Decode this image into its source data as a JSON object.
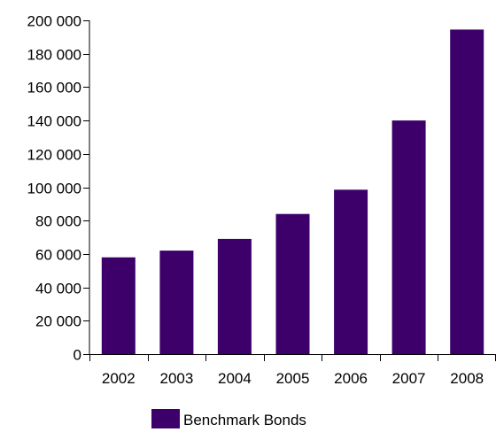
{
  "chart_data": {
    "type": "bar",
    "title": "",
    "xlabel": "",
    "ylabel": "",
    "categories": [
      "2002",
      "2003",
      "2004",
      "2005",
      "2006",
      "2007",
      "2008"
    ],
    "series": [
      {
        "name": "Benchmark Bonds",
        "color": "#3d006b",
        "values": [
          58000,
          62000,
          69000,
          84000,
          98500,
          140000,
          194500
        ]
      }
    ],
    "ylim": [
      0,
      200000
    ],
    "yticks": [
      0,
      20000,
      40000,
      60000,
      80000,
      100000,
      120000,
      140000,
      160000,
      180000,
      200000
    ],
    "ytick_labels": [
      "0",
      "20 000",
      "40 000",
      "60 000",
      "80 000",
      "100 000",
      "120 000",
      "140 000",
      "160 000",
      "180 000",
      "200 000"
    ],
    "grid": false,
    "legend_position": "bottom-center"
  }
}
